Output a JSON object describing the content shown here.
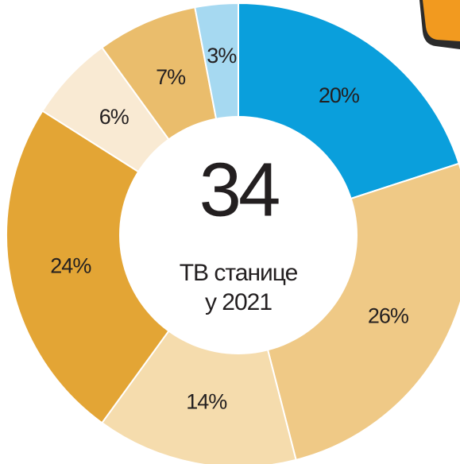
{
  "chart_data": {
    "type": "donut",
    "values": [
      20,
      26,
      14,
      24,
      6,
      7,
      3
    ],
    "value_labels": [
      "20%",
      "26%",
      "14%",
      "24%",
      "6%",
      "7%",
      "3%"
    ],
    "colors": [
      "#0a9fdc",
      "#efc986",
      "#f5dcad",
      "#e3a535",
      "#f9ead3",
      "#eabd6c",
      "#a6d9f1"
    ],
    "annotations": [
      "34",
      "ТВ станице",
      "у 2021"
    ]
  }
}
